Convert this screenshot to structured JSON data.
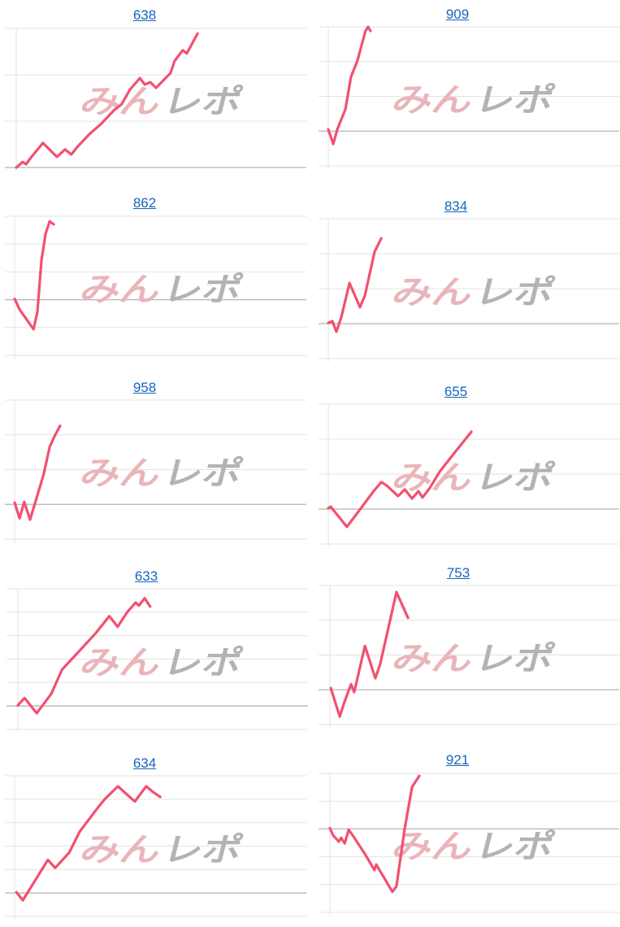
{
  "watermark": {
    "text_pink": "みん",
    "text_gray": "レポ"
  },
  "colors": {
    "line": "#f2506f",
    "grid": "#e3e3e3",
    "baseline": "#b5b5b5",
    "title_link": "#1565c0",
    "watermark_pink": "#e9b5b8",
    "watermark_gray": "#b3b3b3"
  },
  "chart_data": [
    {
      "type": "line",
      "title": "638",
      "grid": true,
      "ylim": [
        0,
        3
      ],
      "xlim": [
        0,
        100
      ],
      "baseline": 0,
      "points": [
        [
          0,
          0
        ],
        [
          2.2,
          0.12
        ],
        [
          3.4,
          0.07
        ],
        [
          5,
          0.21
        ],
        [
          9.2,
          0.53
        ],
        [
          14,
          0.23
        ],
        [
          16.8,
          0.39
        ],
        [
          19,
          0.28
        ],
        [
          21,
          0.44
        ],
        [
          25.2,
          0.72
        ],
        [
          29.4,
          0.95
        ],
        [
          33.6,
          1.23
        ],
        [
          36.4,
          1.37
        ],
        [
          39.2,
          1.68
        ],
        [
          42.6,
          1.93
        ],
        [
          44.3,
          1.79
        ],
        [
          46.2,
          1.84
        ],
        [
          48.2,
          1.72
        ],
        [
          50.4,
          1.86
        ],
        [
          53.2,
          2.04
        ],
        [
          54.6,
          2.3
        ],
        [
          57.4,
          2.53
        ],
        [
          58.8,
          2.46
        ],
        [
          62.5,
          2.89
        ]
      ]
    },
    {
      "type": "line",
      "title": "909",
      "grid": true,
      "ylim": [
        -1,
        3
      ],
      "xlim": [
        0,
        100
      ],
      "baseline": 0,
      "points": [
        [
          0,
          0.05
        ],
        [
          1.7,
          -0.37
        ],
        [
          3.1,
          0.05
        ],
        [
          5.9,
          0.63
        ],
        [
          7.8,
          1.56
        ],
        [
          10,
          2.02
        ],
        [
          11.5,
          2.49
        ],
        [
          12.8,
          2.88
        ],
        [
          13.7,
          3.0
        ],
        [
          14.5,
          2.88
        ]
      ]
    },
    {
      "type": "line",
      "title": "862",
      "grid": true,
      "ylim": [
        -2,
        3
      ],
      "xlim": [
        0,
        100
      ],
      "baseline": 0,
      "points": [
        [
          0,
          0.03
        ],
        [
          1.7,
          -0.35
        ],
        [
          6.5,
          -1.06
        ],
        [
          7.8,
          -0.44
        ],
        [
          9.2,
          1.41
        ],
        [
          10.6,
          2.38
        ],
        [
          12,
          2.82
        ],
        [
          13.4,
          2.71
        ]
      ]
    },
    {
      "type": "line",
      "title": "834",
      "grid": true,
      "ylim": [
        -1,
        3
      ],
      "xlim": [
        0,
        100
      ],
      "baseline": 0,
      "points": [
        [
          0,
          0.02
        ],
        [
          1.4,
          0.07
        ],
        [
          2.8,
          -0.23
        ],
        [
          4.5,
          0.19
        ],
        [
          7.3,
          1.16
        ],
        [
          10.9,
          0.47
        ],
        [
          12.6,
          0.81
        ],
        [
          15.9,
          2.05
        ],
        [
          18.2,
          2.44
        ]
      ]
    },
    {
      "type": "line",
      "title": "958",
      "grid": true,
      "ylim": [
        -1,
        3
      ],
      "xlim": [
        0,
        100
      ],
      "baseline": 0,
      "points": [
        [
          0,
          0.05
        ],
        [
          1.7,
          -0.4
        ],
        [
          3.3,
          0.07
        ],
        [
          5.3,
          -0.44
        ],
        [
          7.2,
          0.09
        ],
        [
          10,
          0.88
        ],
        [
          12,
          1.65
        ],
        [
          13.9,
          2.0
        ],
        [
          15.6,
          2.26
        ]
      ]
    },
    {
      "type": "line",
      "title": "655",
      "grid": true,
      "ylim": [
        -1,
        3
      ],
      "xlim": [
        0,
        100
      ],
      "baseline": 0,
      "points": [
        [
          0,
          0.02
        ],
        [
          0.8,
          0.07
        ],
        [
          6.4,
          -0.51
        ],
        [
          11.2,
          0.02
        ],
        [
          15.4,
          0.49
        ],
        [
          18.2,
          0.77
        ],
        [
          20.1,
          0.67
        ],
        [
          24,
          0.37
        ],
        [
          26.3,
          0.56
        ],
        [
          28.8,
          0.3
        ],
        [
          31,
          0.51
        ],
        [
          32.4,
          0.33
        ],
        [
          34.9,
          0.6
        ],
        [
          38.3,
          1.07
        ],
        [
          43.3,
          1.6
        ],
        [
          49.2,
          2.21
        ]
      ]
    },
    {
      "type": "line",
      "title": "633",
      "grid": true,
      "ylim": [
        -1,
        5
      ],
      "xlim": [
        0,
        100
      ],
      "baseline": 0,
      "points": [
        [
          0,
          0.03
        ],
        [
          2.3,
          0.34
        ],
        [
          6.5,
          -0.31
        ],
        [
          11.5,
          0.52
        ],
        [
          15.2,
          1.55
        ],
        [
          18.6,
          2.0
        ],
        [
          26.8,
          3.1
        ],
        [
          31.5,
          3.83
        ],
        [
          34.4,
          3.38
        ],
        [
          37.7,
          4.0
        ],
        [
          40.6,
          4.41
        ],
        [
          41.7,
          4.28
        ],
        [
          43.7,
          4.59
        ],
        [
          45.6,
          4.24
        ]
      ]
    },
    {
      "type": "line",
      "title": "753",
      "grid": true,
      "ylim": [
        -1,
        3
      ],
      "xlim": [
        0,
        100
      ],
      "baseline": 0,
      "points": [
        [
          0.3,
          0.05
        ],
        [
          3.4,
          -0.77
        ],
        [
          5.1,
          -0.33
        ],
        [
          7.3,
          0.16
        ],
        [
          8.4,
          -0.07
        ],
        [
          12.1,
          1.26
        ],
        [
          15.7,
          0.33
        ],
        [
          17.4,
          0.74
        ],
        [
          23,
          2.81
        ],
        [
          27,
          2.07
        ]
      ]
    },
    {
      "type": "line",
      "title": "634",
      "grid": true,
      "ylim": [
        -1,
        5
      ],
      "xlim": [
        0,
        100
      ],
      "baseline": 0,
      "points": [
        [
          0.6,
          0.03
        ],
        [
          2.8,
          -0.31
        ],
        [
          11.4,
          1.41
        ],
        [
          13.9,
          1.07
        ],
        [
          18.7,
          1.72
        ],
        [
          22.3,
          2.62
        ],
        [
          28.4,
          3.62
        ],
        [
          30.9,
          4.0
        ],
        [
          35.4,
          4.55
        ],
        [
          41.2,
          3.9
        ],
        [
          45.1,
          4.55
        ],
        [
          47.4,
          4.31
        ],
        [
          49.9,
          4.1
        ]
      ]
    },
    {
      "type": "line",
      "title": "921",
      "grid": true,
      "ylim": [
        -3,
        2
      ],
      "xlim": [
        0,
        100
      ],
      "baseline": 0,
      "points": [
        [
          0,
          0.03
        ],
        [
          1.1,
          -0.23
        ],
        [
          3.1,
          -0.46
        ],
        [
          3.9,
          -0.32
        ],
        [
          5.1,
          -0.52
        ],
        [
          6.5,
          -0.03
        ],
        [
          7.9,
          -0.23
        ],
        [
          12.1,
          -0.9
        ],
        [
          15.4,
          -1.48
        ],
        [
          16,
          -1.28
        ],
        [
          21.6,
          -2.26
        ],
        [
          23,
          -2.06
        ],
        [
          25.8,
          -0.03
        ],
        [
          28.4,
          1.51
        ],
        [
          30.9,
          1.91
        ]
      ]
    }
  ]
}
